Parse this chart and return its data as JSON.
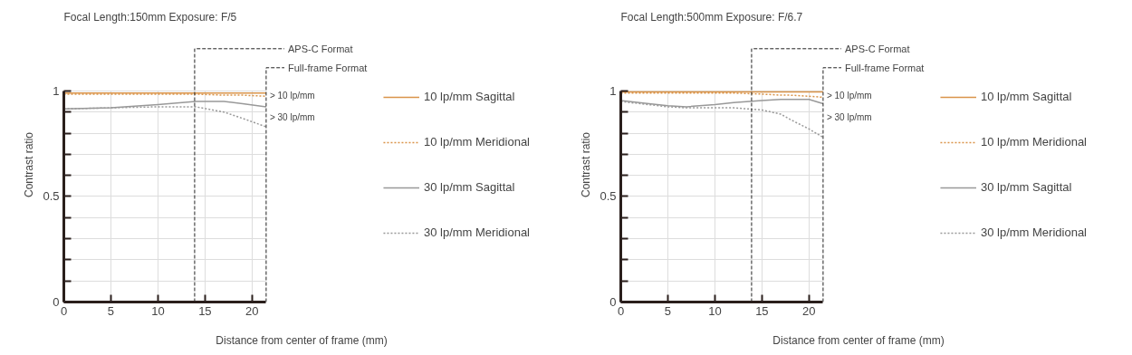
{
  "chart_data": [
    {
      "type": "line",
      "title": "Focal Length:150mm  Exposure: F/5",
      "xlabel": "Distance from center of frame (mm)",
      "ylabel": "Contrast ratio",
      "x": [
        0,
        5,
        10,
        14,
        17,
        19,
        21.5
      ],
      "series": [
        {
          "name": "10 lp/mm Sagittal",
          "color": "#d9944a",
          "line_style": "solid",
          "values": [
            0.99,
            0.99,
            0.99,
            0.99,
            0.99,
            0.99,
            0.99
          ]
        },
        {
          "name": "10 lp/mm Meridional",
          "color": "#d9944a",
          "line_style": "dotted",
          "values": [
            0.985,
            0.985,
            0.985,
            0.985,
            0.98,
            0.98,
            0.975
          ]
        },
        {
          "name": "30 lp/mm Sagittal",
          "color": "#999999",
          "line_style": "solid",
          "values": [
            0.915,
            0.92,
            0.935,
            0.95,
            0.95,
            0.94,
            0.925
          ]
        },
        {
          "name": "30 lp/mm Meridional",
          "color": "#999999",
          "line_style": "dotted",
          "values": [
            0.915,
            0.92,
            0.925,
            0.925,
            0.9,
            0.87,
            0.83
          ]
        }
      ],
      "xlim": [
        0,
        21.5
      ],
      "ylim": [
        0,
        1
      ],
      "xticks": [
        0,
        5,
        10,
        15,
        20
      ],
      "yticks": [
        0,
        {
          "value": 0.1,
          "label": null
        },
        {
          "value": 0.2,
          "label": null
        },
        {
          "value": 0.3,
          "label": null
        },
        {
          "value": 0.4,
          "label": null
        },
        0.5,
        {
          "value": 0.6,
          "label": null
        },
        {
          "value": 0.7,
          "label": null
        },
        {
          "value": 0.8,
          "label": null
        },
        {
          "value": 0.9,
          "label": null
        },
        1
      ],
      "ref_lines": [
        {
          "axis": "x",
          "value": 13.9,
          "label": "APS-C Format",
          "color": "#222222",
          "line_style": "dashed"
        },
        {
          "axis": "x",
          "value": 21.5,
          "label": "Full-frame Format",
          "color": "#222222",
          "line_style": "dashed"
        }
      ],
      "annotations": [
        "> 10 lp/mm",
        "> 30 lp/mm"
      ],
      "grid": true,
      "legend": "right"
    },
    {
      "type": "line",
      "title": "Focal Length:500mm  Exposure: F/6.7",
      "xlabel": "Distance from center of frame (mm)",
      "ylabel": "Contrast ratio",
      "x": [
        0,
        3,
        5,
        7,
        10,
        12,
        15,
        17,
        18,
        20,
        21.5
      ],
      "series": [
        {
          "name": "10 lp/mm Sagittal",
          "color": "#d9944a",
          "line_style": "solid",
          "values": [
            0.995,
            0.995,
            0.995,
            0.995,
            0.995,
            0.995,
            0.995,
            0.995,
            0.995,
            0.995,
            0.995
          ]
        },
        {
          "name": "10 lp/mm Meridional",
          "color": "#d9944a",
          "line_style": "dotted",
          "values": [
            0.99,
            0.99,
            0.99,
            0.99,
            0.99,
            0.99,
            0.985,
            0.98,
            0.98,
            0.975,
            0.97
          ]
        },
        {
          "name": "30 lp/mm Sagittal",
          "color": "#999999",
          "line_style": "solid",
          "values": [
            0.955,
            0.94,
            0.93,
            0.925,
            0.935,
            0.945,
            0.955,
            0.96,
            0.96,
            0.96,
            0.94
          ]
        },
        {
          "name": "30 lp/mm Meridional",
          "color": "#999999",
          "line_style": "dotted",
          "values": [
            0.95,
            0.935,
            0.925,
            0.92,
            0.92,
            0.92,
            0.91,
            0.89,
            0.865,
            0.82,
            0.78
          ]
        }
      ],
      "xlim": [
        0,
        21.5
      ],
      "ylim": [
        0,
        1
      ],
      "xticks": [
        0,
        5,
        10,
        15,
        20
      ],
      "yticks": [
        0,
        {
          "value": 0.1,
          "label": null
        },
        {
          "value": 0.2,
          "label": null
        },
        {
          "value": 0.3,
          "label": null
        },
        {
          "value": 0.4,
          "label": null
        },
        0.5,
        {
          "value": 0.6,
          "label": null
        },
        {
          "value": 0.7,
          "label": null
        },
        {
          "value": 0.8,
          "label": null
        },
        {
          "value": 0.9,
          "label": null
        },
        1
      ],
      "ref_lines": [
        {
          "axis": "x",
          "value": 13.9,
          "label": "APS-C Format",
          "color": "#222222",
          "line_style": "dashed"
        },
        {
          "axis": "x",
          "value": 21.5,
          "label": "Full-frame Format",
          "color": "#222222",
          "line_style": "dashed"
        }
      ],
      "annotations": [
        "> 10 lp/mm",
        "> 30 lp/mm"
      ],
      "grid": true,
      "legend": "right"
    }
  ]
}
